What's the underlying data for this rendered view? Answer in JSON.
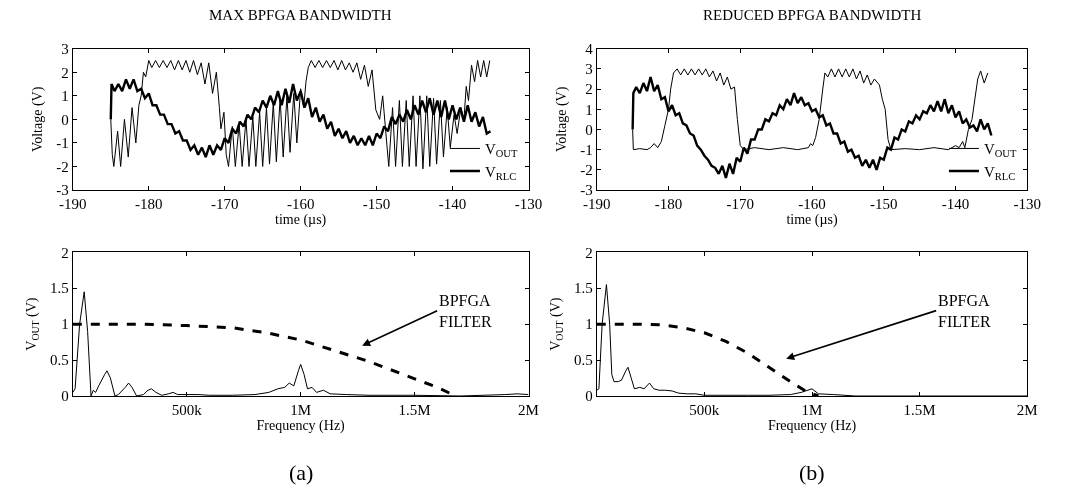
{
  "chart_data": [
    {
      "type": "line",
      "title": "MAX BPFGA BANDWIDTH",
      "xlabel": "time (µs)",
      "ylabel": "Voltage (V)",
      "legend": "bottom right",
      "xlim": [
        -190,
        -130
      ],
      "xticks": [
        -190,
        -180,
        -170,
        -160,
        -150,
        -140,
        -130
      ],
      "ylim": [
        -3,
        3
      ],
      "yticks": [
        -3,
        -2,
        -1,
        0,
        1,
        2,
        3
      ],
      "series": [
        {
          "name": "V$_{OUT}$",
          "color": "#000000",
          "x": [
            -185,
            -184.8,
            -184.6,
            -184.1,
            -183.7,
            -183.2,
            -182.7,
            -182.2,
            -181.7,
            -181.3,
            -181.0,
            -180.7,
            -180.4,
            -180.0,
            -179.6,
            -179.1,
            -178.6,
            -178.1,
            -177.6,
            -177.1,
            -176.6,
            -176.1,
            -175.6,
            -175.1,
            -174.6,
            -174.1,
            -173.6,
            -173.1,
            -172.6,
            -172.1,
            -171.6,
            -171.1,
            -170.7,
            -170.5,
            -170.1,
            -169.8,
            -169.5,
            -169.0,
            -168.6,
            -168.1,
            -167.7,
            -167.2,
            -166.8,
            -166.3,
            -165.9,
            -165.4,
            -165.0,
            -164.5,
            -164.1,
            -163.6,
            -163.2,
            -162.7,
            -162.3,
            -161.8,
            -161.4,
            -160.9,
            -160.5,
            -160.0,
            -159.6,
            -159.3,
            -159.0,
            -158.6,
            -158.1,
            -157.6,
            -157.1,
            -156.6,
            -156.1,
            -155.6,
            -155.1,
            -154.6,
            -154.1,
            -153.6,
            -153.1,
            -152.6,
            -152.1,
            -151.6,
            -151.1,
            -150.6,
            -150.1,
            -149.6,
            -149.2,
            -148.8,
            -148.4,
            -147.9,
            -147.5,
            -147.0,
            -146.6,
            -146.1,
            -145.7,
            -145.2,
            -144.8,
            -144.3,
            -143.9,
            -143.4,
            -143.0,
            -142.5,
            -142.1,
            -141.6,
            -141.2,
            -140.7,
            -140.3,
            -139.8,
            -139.4,
            -138.9,
            -138.5,
            -138.2,
            -137.9,
            -137.5,
            -137.1,
            -136.7,
            -136.3,
            -135.9,
            -135.5,
            -135.1
          ],
          "values": [
            0,
            -1.5,
            -2.0,
            -0.5,
            -2.0,
            0.0,
            -1.6,
            0.5,
            -1.0,
            0.6,
            1.0,
            2.0,
            1.8,
            2.5,
            2.2,
            2.5,
            2.2,
            2.5,
            2.2,
            2.5,
            2.1,
            2.5,
            2.1,
            2.5,
            2.0,
            2.5,
            1.9,
            2.4,
            1.5,
            2.4,
            1.1,
            2.0,
            0.5,
            -0.4,
            0.3,
            -1.5,
            -2.0,
            -0.3,
            -2.0,
            -0.2,
            -2.0,
            0.0,
            -2.0,
            0.1,
            -2.0,
            0.3,
            -2.0,
            0.5,
            -1.9,
            0.7,
            -1.8,
            0.9,
            -1.6,
            1.0,
            -1.4,
            1.1,
            -1.0,
            1.3,
            0.5,
            1.6,
            2.2,
            2.5,
            2.2,
            2.5,
            2.2,
            2.5,
            2.2,
            2.5,
            2.1,
            2.5,
            2.1,
            2.4,
            2.0,
            2.4,
            1.7,
            2.3,
            1.4,
            2.1,
            0.4,
            0.0,
            1.0,
            -0.5,
            -2.0,
            0.5,
            -2.0,
            0.8,
            -2.0,
            0.8,
            -2.0,
            1.0,
            -2.0,
            1.0,
            -2.1,
            1.0,
            -2.0,
            0.9,
            -1.9,
            0.8,
            -1.6,
            0.5,
            -1.2,
            0.2,
            -0.6,
            0.5,
            0.0,
            1.4,
            0.8,
            2.3,
            1.6,
            2.5,
            1.8,
            2.5,
            1.8,
            2.5
          ]
        },
        {
          "name": "V$_{RLC}$",
          "color": "#000000",
          "x": [
            -185,
            -184.9,
            -184.5,
            -184,
            -183.5,
            -183,
            -182.5,
            -182,
            -181.5,
            -181,
            -180.5,
            -180,
            -179.5,
            -179,
            -178.5,
            -178,
            -177.5,
            -177,
            -176.5,
            -176,
            -175.5,
            -175,
            -174.5,
            -174,
            -173.5,
            -173,
            -172.5,
            -172,
            -171.5,
            -171,
            -170.5,
            -170,
            -169.5,
            -169,
            -168.5,
            -168,
            -167.5,
            -167,
            -166.5,
            -166,
            -165.5,
            -165,
            -164.5,
            -164,
            -163.5,
            -163,
            -162.5,
            -162,
            -161.5,
            -161,
            -160.5,
            -160,
            -159.5,
            -159,
            -158.5,
            -158,
            -157.5,
            -157,
            -156.5,
            -156,
            -155.5,
            -155,
            -154.5,
            -154,
            -153.5,
            -153,
            -152.5,
            -152,
            -151.5,
            -151,
            -150.5,
            -150,
            -149.5,
            -149,
            -148.5,
            -148,
            -147.5,
            -147,
            -146.5,
            -146,
            -145.5,
            -145,
            -144.5,
            -144,
            -143.5,
            -143,
            -142.5,
            -142,
            -141.5,
            -141,
            -140.5,
            -140,
            -139.5,
            -139,
            -138.5,
            -138,
            -137.5,
            -137,
            -136.5,
            -136,
            -135.5,
            -135
          ],
          "values": [
            0,
            1.5,
            1.2,
            1.5,
            1.2,
            1.7,
            1.3,
            1.7,
            1.2,
            1.3,
            0.9,
            1.1,
            0.6,
            0.6,
            0.2,
            0.2,
            -0.2,
            -0.2,
            -0.6,
            -0.5,
            -0.9,
            -0.9,
            -1.3,
            -1.1,
            -1.5,
            -1.2,
            -1.6,
            -1.1,
            -1.5,
            -1.1,
            -1.3,
            -0.8,
            -1.0,
            -0.4,
            -0.6,
            -0.1,
            -0.3,
            0.2,
            0.0,
            0.5,
            0.3,
            0.8,
            0.5,
            1.0,
            0.6,
            1.2,
            0.6,
            1.3,
            0.7,
            1.5,
            0.8,
            1.2,
            0.5,
            0.9,
            0.1,
            0.5,
            -0.1,
            0.2,
            -0.4,
            -0.1,
            -0.7,
            -0.4,
            -0.8,
            -0.5,
            -1.0,
            -0.7,
            -1.1,
            -0.8,
            -1.1,
            -0.7,
            -1.1,
            -0.6,
            -0.8,
            -0.3,
            -0.5,
            0.1,
            -0.2,
            0.2,
            -0.1,
            0.4,
            0.0,
            0.6,
            0.2,
            0.8,
            0.3,
            0.9,
            0.2,
            0.8,
            0.1,
            0.8,
            0.0,
            0.6,
            0.0,
            0.5,
            -0.1,
            0.6,
            -0.1,
            0.3,
            -0.3,
            0.1,
            -0.6,
            -0.5
          ]
        }
      ]
    },
    {
      "type": "line",
      "title": "REDUCED BPFGA BANDWIDTH",
      "xlabel": "time (µs)",
      "ylabel": "Voltage (V)",
      "legend": "bottom right",
      "xlim": [
        -190,
        -130
      ],
      "xticks": [
        -190,
        -180,
        -170,
        -160,
        -150,
        -140,
        -130
      ],
      "ylim": [
        -3,
        4
      ],
      "yticks": [
        -3,
        -2,
        -1,
        0,
        1,
        2,
        3,
        4
      ],
      "series": [
        {
          "name": "V$_{OUT}$",
          "color": "#000000",
          "x": [
            -185,
            -184.9,
            -184,
            -183,
            -182.5,
            -182,
            -181.5,
            -181,
            -180.5,
            -180,
            -179.7,
            -179.3,
            -178.8,
            -178.3,
            -177.8,
            -177.3,
            -176.8,
            -176.3,
            -175.8,
            -175.3,
            -174.8,
            -174.3,
            -173.8,
            -173.3,
            -172.8,
            -172.3,
            -171.8,
            -171.3,
            -170.8,
            -170.4,
            -170,
            -169.5,
            -168,
            -166,
            -164,
            -162,
            -160.5,
            -160.2,
            -159.9,
            -159.5,
            -159,
            -158.5,
            -158.2,
            -157.8,
            -157.3,
            -156.8,
            -156.3,
            -155.8,
            -155.3,
            -154.8,
            -154.3,
            -153.8,
            -153.3,
            -152.8,
            -152.3,
            -151.8,
            -151.3,
            -150.6,
            -150.2,
            -149.8,
            -149.4,
            -149,
            -147,
            -145,
            -143,
            -141,
            -140,
            -139.5,
            -139,
            -138.7,
            -138.2,
            -137.7,
            -137.3,
            -136.9,
            -136.5,
            -136,
            -135.5
          ],
          "values": [
            0,
            -1.0,
            -0.95,
            -1.0,
            -0.9,
            -0.7,
            -0.9,
            -0.6,
            0.2,
            1.0,
            2.0,
            2.8,
            3.0,
            2.7,
            3.0,
            2.7,
            3.0,
            2.7,
            3.0,
            2.7,
            3.0,
            2.6,
            2.9,
            2.4,
            2.8,
            2.2,
            2.6,
            2.0,
            2.1,
            0.5,
            -0.8,
            -1.0,
            -0.9,
            -1.0,
            -0.9,
            -1.0,
            -0.9,
            -0.7,
            -0.8,
            -0.4,
            0.5,
            2.0,
            2.8,
            2.6,
            3.0,
            2.6,
            3.0,
            2.6,
            3.0,
            2.6,
            3.0,
            2.5,
            2.9,
            2.3,
            2.7,
            2.2,
            2.5,
            2.2,
            1.5,
            1.0,
            -0.5,
            -1.0,
            -0.95,
            -1.0,
            -0.9,
            -1.0,
            -0.8,
            -0.9,
            -0.6,
            -0.9,
            0.0,
            0.5,
            1.5,
            2.5,
            2.9,
            2.3,
            2.8
          ]
        },
        {
          "name": "V$_{RLC}$",
          "color": "#000000",
          "x": [
            -185,
            -184.9,
            -184.5,
            -184,
            -183.5,
            -183,
            -182.5,
            -182,
            -181.5,
            -181,
            -180.5,
            -180,
            -179.5,
            -179,
            -178.5,
            -178,
            -177.5,
            -177,
            -176.5,
            -176,
            -175.5,
            -175,
            -174.5,
            -174,
            -173.5,
            -173,
            -172.5,
            -172,
            -171.5,
            -171,
            -170.5,
            -170,
            -169.5,
            -169,
            -168.5,
            -168,
            -167.5,
            -167,
            -166.5,
            -166,
            -165.5,
            -165,
            -164.5,
            -164,
            -163.5,
            -163,
            -162.5,
            -162,
            -161.5,
            -161,
            -160.5,
            -160,
            -159.5,
            -159,
            -158.5,
            -158,
            -157.5,
            -157,
            -156.5,
            -156,
            -155.5,
            -155,
            -154.5,
            -154,
            -153.5,
            -153,
            -152.5,
            -152,
            -151.5,
            -151,
            -150.5,
            -150,
            -149.5,
            -149,
            -148.5,
            -148,
            -147.5,
            -147,
            -146.5,
            -146,
            -145.5,
            -145,
            -144.5,
            -144,
            -143.5,
            -143,
            -142.5,
            -142,
            -141.5,
            -141,
            -140.5,
            -140,
            -139.5,
            -139,
            -138.5,
            -138,
            -137.5,
            -137,
            -136.5,
            -136,
            -135.5,
            -135
          ],
          "values": [
            0,
            1.8,
            2.1,
            1.8,
            2.3,
            1.9,
            2.6,
            1.9,
            2.2,
            1.5,
            1.6,
            0.9,
            1.2,
            0.7,
            0.8,
            0.3,
            0.2,
            -0.2,
            -0.3,
            -0.8,
            -1.0,
            -1.3,
            -1.5,
            -1.8,
            -1.9,
            -2.2,
            -1.8,
            -2.4,
            -1.7,
            -2.2,
            -1.4,
            -1.6,
            -0.9,
            -1.2,
            -0.5,
            -0.5,
            0.0,
            0.0,
            0.5,
            0.4,
            0.8,
            0.7,
            1.2,
            1.0,
            1.5,
            1.2,
            1.8,
            1.3,
            1.6,
            1.2,
            1.3,
            0.9,
            1.0,
            0.6,
            0.7,
            0.2,
            0.3,
            -0.2,
            -0.2,
            -0.7,
            -0.6,
            -1.1,
            -1.0,
            -1.4,
            -1.3,
            -1.8,
            -1.5,
            -1.9,
            -1.5,
            -2.0,
            -1.4,
            -1.5,
            -0.9,
            -1.0,
            -0.4,
            -0.5,
            0.0,
            -0.1,
            0.4,
            0.3,
            0.7,
            0.5,
            0.9,
            0.8,
            1.2,
            0.9,
            1.4,
            0.9,
            1.5,
            0.8,
            1.2,
            0.6,
            0.9,
            0.3,
            0.5,
            0.1,
            0.2,
            -0.1,
            0.5,
            0.0,
            0.3,
            -0.3
          ]
        }
      ]
    },
    {
      "type": "line",
      "xlabel": "Frequency (Hz)",
      "ylabel": "V$_{OUT}$ (V)",
      "xlim": [
        0,
        2000000
      ],
      "xticks": [
        {
          "value": 500000,
          "label": "500k"
        },
        {
          "value": 1000000,
          "label": "1M"
        },
        {
          "value": 1500000,
          "label": "1.5M"
        },
        {
          "value": 2000000,
          "label": "2M"
        }
      ],
      "ylim": [
        0,
        2
      ],
      "yticks": [
        0,
        0.5,
        1,
        1.5,
        2
      ],
      "annotations": [
        "BPFGA\nFILTER",
        "(a)"
      ],
      "series": [
        {
          "color": "#000000",
          "line_style": "solid",
          "x": [
            0,
            10000,
            30000,
            50000,
            65000,
            80000,
            90000,
            100000,
            115000,
            140000,
            150000,
            165000,
            185000,
            200000,
            230000,
            245000,
            260000,
            280000,
            310000,
            330000,
            345000,
            365000,
            390000,
            420000,
            440000,
            460000,
            500000,
            550000,
            600000,
            700000,
            800000,
            860000,
            900000,
            930000,
            950000,
            970000,
            990000,
            1000000,
            1015000,
            1030000,
            1050000,
            1070000,
            1100000,
            1130000,
            1200000,
            1300000,
            1500000,
            1700000,
            1900000,
            1950000,
            2000000
          ],
          "values": [
            0.05,
            0.1,
            1.0,
            1.45,
            0.9,
            0.0,
            0.08,
            0.05,
            0.15,
            0.3,
            0.35,
            0.25,
            0.0,
            0.02,
            0.12,
            0.18,
            0.12,
            0.0,
            0.02,
            0.08,
            0.1,
            0.05,
            0.01,
            0.03,
            0.05,
            0.02,
            0.02,
            0.02,
            0.01,
            0.01,
            0.02,
            0.05,
            0.1,
            0.12,
            0.18,
            0.14,
            0.35,
            0.44,
            0.3,
            0.1,
            0.12,
            0.05,
            0.08,
            0.03,
            0.02,
            0.01,
            0.01,
            0.0,
            0.02,
            0.03,
            0.02
          ]
        },
        {
          "color": "#000000",
          "line_style": "dashed",
          "x": [
            0,
            300000,
            500000,
            700000,
            850000,
            1000000,
            1150000,
            1300000,
            1450000,
            1600000,
            1680000
          ],
          "values": [
            1,
            1,
            0.98,
            0.95,
            0.88,
            0.78,
            0.63,
            0.48,
            0.3,
            0.12,
            0.0
          ]
        }
      ]
    },
    {
      "type": "line",
      "xlabel": "Frequency (Hz)",
      "ylabel": "V$_{OUT}$ (V)",
      "xlim": [
        0,
        2000000
      ],
      "xticks": [
        {
          "value": 500000,
          "label": "500k"
        },
        {
          "value": 1000000,
          "label": "1M"
        },
        {
          "value": 1500000,
          "label": "1.5M"
        },
        {
          "value": 2000000,
          "label": "2M"
        }
      ],
      "ylim": [
        0,
        2
      ],
      "yticks": [
        0,
        0.5,
        1,
        1.5,
        2
      ],
      "annotations": [
        "BPFGA\nFILTER",
        "(b)"
      ],
      "series": [
        {
          "color": "#000000",
          "line_style": "solid",
          "x": [
            0,
            10000,
            25000,
            45000,
            60000,
            70000,
            80000,
            100000,
            115000,
            135000,
            145000,
            160000,
            175000,
            200000,
            220000,
            245000,
            265000,
            290000,
            320000,
            350000,
            380000,
            420000,
            460000,
            500000,
            600000,
            700000,
            800000,
            900000,
            950000,
            1000000,
            1030000,
            1100000,
            1200000,
            2000000
          ],
          "values": [
            0.08,
            0.1,
            1.0,
            1.55,
            1.0,
            0.3,
            0.2,
            0.2,
            0.22,
            0.35,
            0.4,
            0.25,
            0.1,
            0.12,
            0.1,
            0.18,
            0.1,
            0.08,
            0.08,
            0.07,
            0.04,
            0.03,
            0.03,
            0.01,
            0.01,
            0.01,
            0.01,
            0.02,
            0.05,
            0.1,
            0.03,
            0.02,
            0.0,
            0.0
          ]
        },
        {
          "color": "#000000",
          "line_style": "dashed",
          "x": [
            0,
            200000,
            300000,
            400000,
            500000,
            600000,
            700000,
            800000,
            900000,
            980000,
            1030000
          ],
          "values": [
            1,
            1.0,
            0.99,
            0.95,
            0.88,
            0.76,
            0.6,
            0.4,
            0.2,
            0.05,
            0.0
          ]
        }
      ]
    }
  ]
}
